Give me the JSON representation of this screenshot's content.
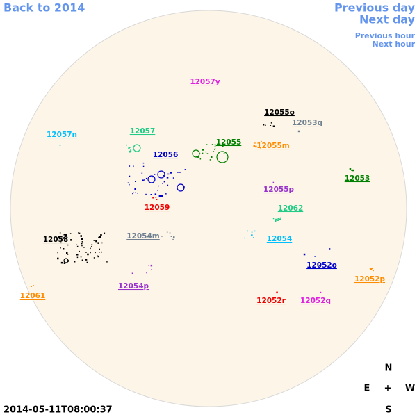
{
  "navigation": {
    "back": "Back to 2014",
    "previous_day": "Previous day",
    "next_day": "Next day",
    "previous_hour": "Previous hour",
    "next_hour": "Next hour"
  },
  "regions": [
    {
      "label": "12057y",
      "color": "#e020e0"
    },
    {
      "label": "12055o",
      "color": "#000000"
    },
    {
      "label": "12053q",
      "color": "#708090"
    },
    {
      "label": "12057n",
      "color": "#00bfff"
    },
    {
      "label": "12057",
      "color": "#22cc88"
    },
    {
      "label": "12055",
      "color": "#008000"
    },
    {
      "label": "12055m",
      "color": "#ff8c00"
    },
    {
      "label": "12056",
      "color": "#0000cc"
    },
    {
      "label": "12053",
      "color": "#008000"
    },
    {
      "label": "12055p",
      "color": "#9932cc"
    },
    {
      "label": "12059",
      "color": "#ee0000"
    },
    {
      "label": "12062",
      "color": "#22cc88"
    },
    {
      "label": "12058",
      "color": "#000000"
    },
    {
      "label": "12054m",
      "color": "#708090"
    },
    {
      "label": "12054",
      "color": "#00bfff"
    },
    {
      "label": "12052o",
      "color": "#0000cc"
    },
    {
      "label": "12052p",
      "color": "#ff8c00"
    },
    {
      "label": "12061",
      "color": "#ff8c00"
    },
    {
      "label": "12054p",
      "color": "#9932cc"
    },
    {
      "label": "12052r",
      "color": "#ee0000"
    },
    {
      "label": "12052q",
      "color": "#e020e0"
    }
  ],
  "compass": {
    "north": "N",
    "east": "E",
    "center": "+",
    "west": "W",
    "south": "S"
  },
  "timestamp": "2014-05-11T08:00:37"
}
